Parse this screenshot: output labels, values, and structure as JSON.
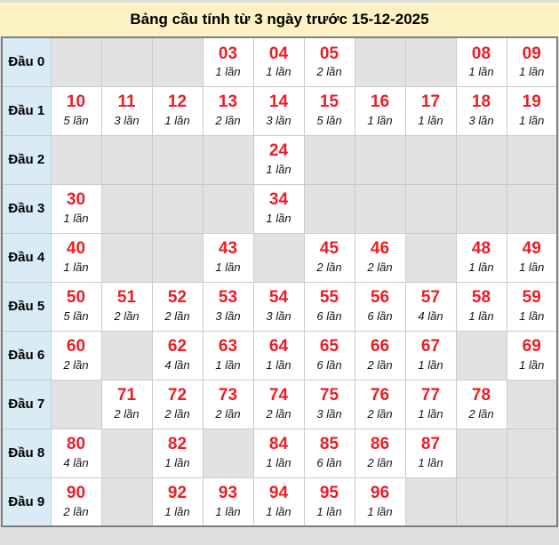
{
  "title": "Bảng cầu tính từ 3 ngày trước 15-12-2025",
  "colors": {
    "page_bg": "#dedede",
    "title_bg": "#fcf2c3",
    "label_bg": "#d9ecf6",
    "empty_bg": "#e2e2e2",
    "filled_bg": "#ffffff",
    "number_color": "#ee1c25",
    "count_color": "#141414",
    "outer_border": "#7e7e7e",
    "cell_border": "#cbcbcb"
  },
  "rows": [
    {
      "label": "Đầu 0",
      "cells": [
        null,
        null,
        null,
        {
          "num": "03",
          "count": "1 lần"
        },
        {
          "num": "04",
          "count": "1 lần"
        },
        {
          "num": "05",
          "count": "2 lần"
        },
        null,
        null,
        {
          "num": "08",
          "count": "1 lần"
        },
        {
          "num": "09",
          "count": "1 lần"
        }
      ]
    },
    {
      "label": "Đầu 1",
      "cells": [
        {
          "num": "10",
          "count": "5 lần"
        },
        {
          "num": "11",
          "count": "3 lần"
        },
        {
          "num": "12",
          "count": "1 lần"
        },
        {
          "num": "13",
          "count": "2 lần"
        },
        {
          "num": "14",
          "count": "3 lần"
        },
        {
          "num": "15",
          "count": "5 lần"
        },
        {
          "num": "16",
          "count": "1 lần"
        },
        {
          "num": "17",
          "count": "1 lần"
        },
        {
          "num": "18",
          "count": "3 lần"
        },
        {
          "num": "19",
          "count": "1 lần"
        }
      ]
    },
    {
      "label": "Đầu 2",
      "cells": [
        null,
        null,
        null,
        null,
        {
          "num": "24",
          "count": "1 lần"
        },
        null,
        null,
        null,
        null,
        null
      ]
    },
    {
      "label": "Đầu 3",
      "cells": [
        {
          "num": "30",
          "count": "1 lần"
        },
        null,
        null,
        null,
        {
          "num": "34",
          "count": "1 lần"
        },
        null,
        null,
        null,
        null,
        null
      ]
    },
    {
      "label": "Đầu 4",
      "cells": [
        {
          "num": "40",
          "count": "1 lần"
        },
        null,
        null,
        {
          "num": "43",
          "count": "1 lần"
        },
        null,
        {
          "num": "45",
          "count": "2 lần"
        },
        {
          "num": "46",
          "count": "2 lần"
        },
        null,
        {
          "num": "48",
          "count": "1 lần"
        },
        {
          "num": "49",
          "count": "1 lần"
        }
      ]
    },
    {
      "label": "Đầu 5",
      "cells": [
        {
          "num": "50",
          "count": "5 lần"
        },
        {
          "num": "51",
          "count": "2 lần"
        },
        {
          "num": "52",
          "count": "2 lần"
        },
        {
          "num": "53",
          "count": "3 lần"
        },
        {
          "num": "54",
          "count": "3 lần"
        },
        {
          "num": "55",
          "count": "6 lần"
        },
        {
          "num": "56",
          "count": "6 lần"
        },
        {
          "num": "57",
          "count": "4 lần"
        },
        {
          "num": "58",
          "count": "1 lần"
        },
        {
          "num": "59",
          "count": "1 lần"
        }
      ]
    },
    {
      "label": "Đầu 6",
      "cells": [
        {
          "num": "60",
          "count": "2 lần"
        },
        null,
        {
          "num": "62",
          "count": "4 lần"
        },
        {
          "num": "63",
          "count": "1 lần"
        },
        {
          "num": "64",
          "count": "1 lần"
        },
        {
          "num": "65",
          "count": "6 lần"
        },
        {
          "num": "66",
          "count": "2 lần"
        },
        {
          "num": "67",
          "count": "1 lần"
        },
        null,
        {
          "num": "69",
          "count": "1 lần"
        }
      ]
    },
    {
      "label": "Đầu 7",
      "cells": [
        null,
        {
          "num": "71",
          "count": "2 lần"
        },
        {
          "num": "72",
          "count": "2 lần"
        },
        {
          "num": "73",
          "count": "2 lần"
        },
        {
          "num": "74",
          "count": "2 lần"
        },
        {
          "num": "75",
          "count": "3 lần"
        },
        {
          "num": "76",
          "count": "2 lần"
        },
        {
          "num": "77",
          "count": "1 lần"
        },
        {
          "num": "78",
          "count": "2 lần"
        },
        null
      ]
    },
    {
      "label": "Đầu 8",
      "cells": [
        {
          "num": "80",
          "count": "4 lần"
        },
        null,
        {
          "num": "82",
          "count": "1 lần"
        },
        null,
        {
          "num": "84",
          "count": "1 lần"
        },
        {
          "num": "85",
          "count": "6 lần"
        },
        {
          "num": "86",
          "count": "2 lần"
        },
        {
          "num": "87",
          "count": "1 lần"
        },
        null,
        null
      ]
    },
    {
      "label": "Đầu 9",
      "cells": [
        {
          "num": "90",
          "count": "2 lần"
        },
        null,
        {
          "num": "92",
          "count": "1 lần"
        },
        {
          "num": "93",
          "count": "1 lần"
        },
        {
          "num": "94",
          "count": "1 lần"
        },
        {
          "num": "95",
          "count": "1 lần"
        },
        {
          "num": "96",
          "count": "1 lần"
        },
        null,
        null,
        null
      ]
    }
  ]
}
